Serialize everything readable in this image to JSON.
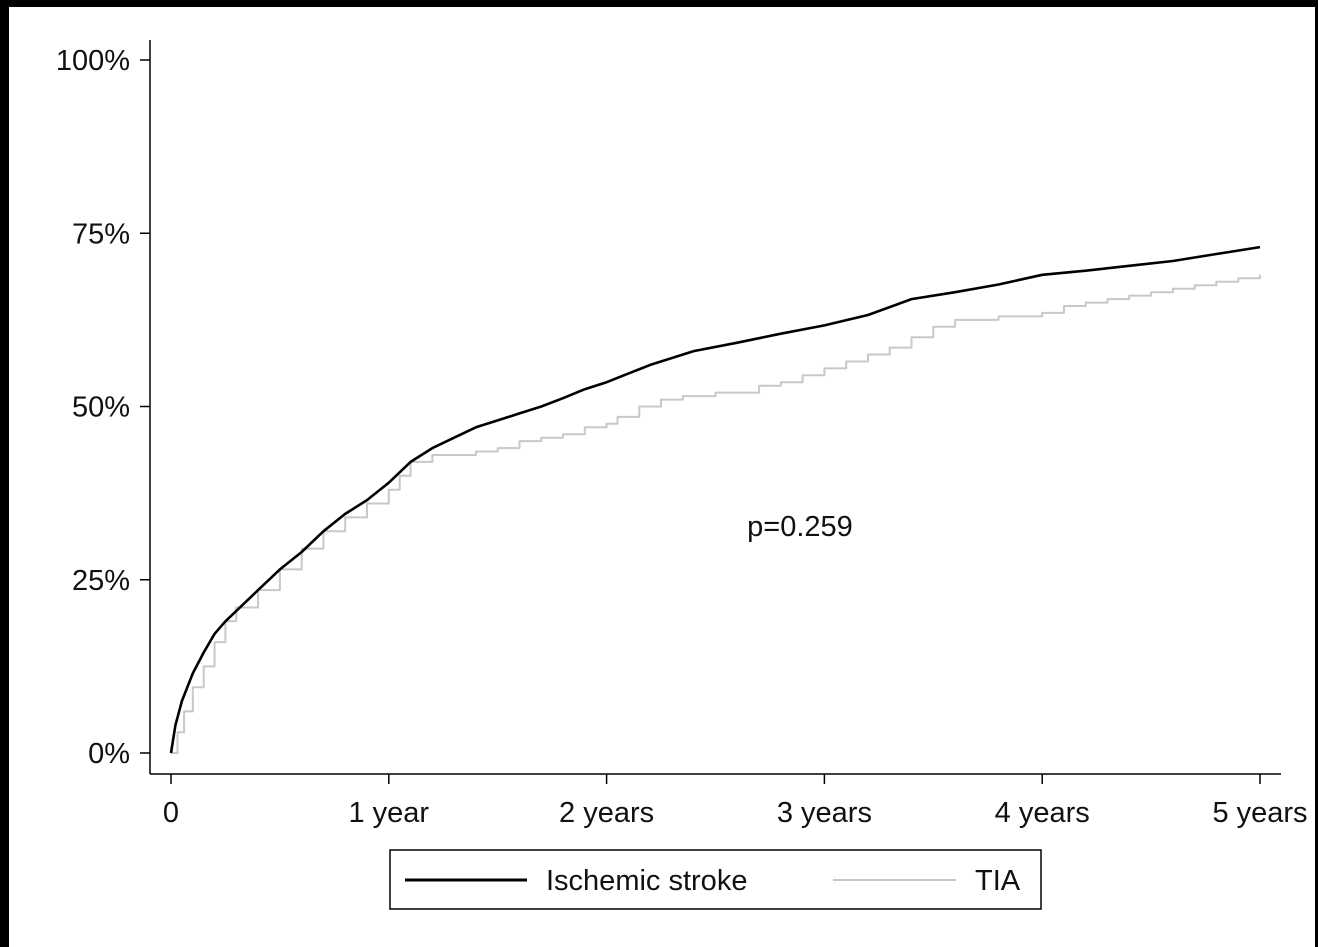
{
  "chart_data": {
    "type": "line",
    "title": "",
    "xlabel": "",
    "ylabel": "",
    "xlim": [
      0,
      5
    ],
    "ylim": [
      0,
      1
    ],
    "x_ticks": [
      {
        "value": 0,
        "label": "0"
      },
      {
        "value": 1,
        "label": "1 year"
      },
      {
        "value": 2,
        "label": "2 years"
      },
      {
        "value": 3,
        "label": "3 years"
      },
      {
        "value": 4,
        "label": "4 years"
      },
      {
        "value": 5,
        "label": "5 years"
      }
    ],
    "y_ticks": [
      {
        "value": 0,
        "label": "0%"
      },
      {
        "value": 0.25,
        "label": "25%"
      },
      {
        "value": 0.5,
        "label": "50%"
      },
      {
        "value": 0.75,
        "label": "75%"
      },
      {
        "value": 1,
        "label": "100%"
      }
    ],
    "grid": false,
    "legend_position": "bottom",
    "annotation": "p=0.259",
    "series": [
      {
        "name": "Ischemic stroke",
        "color": "#000000",
        "step": false,
        "x": [
          0,
          0.02,
          0.05,
          0.1,
          0.15,
          0.2,
          0.25,
          0.3,
          0.4,
          0.5,
          0.6,
          0.7,
          0.8,
          0.9,
          1.0,
          1.1,
          1.2,
          1.3,
          1.4,
          1.5,
          1.6,
          1.7,
          1.8,
          1.9,
          2.0,
          2.2,
          2.4,
          2.6,
          2.8,
          3.0,
          3.2,
          3.4,
          3.6,
          3.8,
          4.0,
          4.2,
          4.4,
          4.6,
          4.8,
          5.0
        ],
        "y": [
          0.0,
          0.04,
          0.075,
          0.115,
          0.145,
          0.172,
          0.19,
          0.205,
          0.235,
          0.265,
          0.29,
          0.32,
          0.345,
          0.365,
          0.39,
          0.42,
          0.44,
          0.455,
          0.47,
          0.48,
          0.49,
          0.5,
          0.512,
          0.525,
          0.535,
          0.56,
          0.58,
          0.592,
          0.605,
          0.617,
          0.632,
          0.655,
          0.665,
          0.676,
          0.69,
          0.696,
          0.703,
          0.71,
          0.72,
          0.73
        ]
      },
      {
        "name": "TIA",
        "color": "#c8c8c8",
        "step": true,
        "x": [
          0,
          0.03,
          0.06,
          0.1,
          0.15,
          0.2,
          0.25,
          0.3,
          0.4,
          0.5,
          0.6,
          0.7,
          0.8,
          0.9,
          1.0,
          1.05,
          1.1,
          1.2,
          1.4,
          1.5,
          1.6,
          1.7,
          1.8,
          1.9,
          2.0,
          2.05,
          2.15,
          2.25,
          2.35,
          2.5,
          2.7,
          2.8,
          2.9,
          3.0,
          3.1,
          3.2,
          3.3,
          3.4,
          3.5,
          3.6,
          3.8,
          4.0,
          4.1,
          4.2,
          4.3,
          4.4,
          4.5,
          4.6,
          4.7,
          4.8,
          4.9,
          5.0
        ],
        "y": [
          0.0,
          0.03,
          0.06,
          0.095,
          0.125,
          0.16,
          0.19,
          0.21,
          0.235,
          0.265,
          0.295,
          0.32,
          0.34,
          0.36,
          0.38,
          0.4,
          0.42,
          0.43,
          0.435,
          0.44,
          0.45,
          0.455,
          0.46,
          0.47,
          0.475,
          0.485,
          0.5,
          0.51,
          0.515,
          0.52,
          0.53,
          0.535,
          0.545,
          0.555,
          0.565,
          0.575,
          0.585,
          0.6,
          0.615,
          0.625,
          0.63,
          0.635,
          0.645,
          0.65,
          0.655,
          0.66,
          0.665,
          0.67,
          0.675,
          0.68,
          0.685,
          0.69
        ]
      }
    ]
  }
}
